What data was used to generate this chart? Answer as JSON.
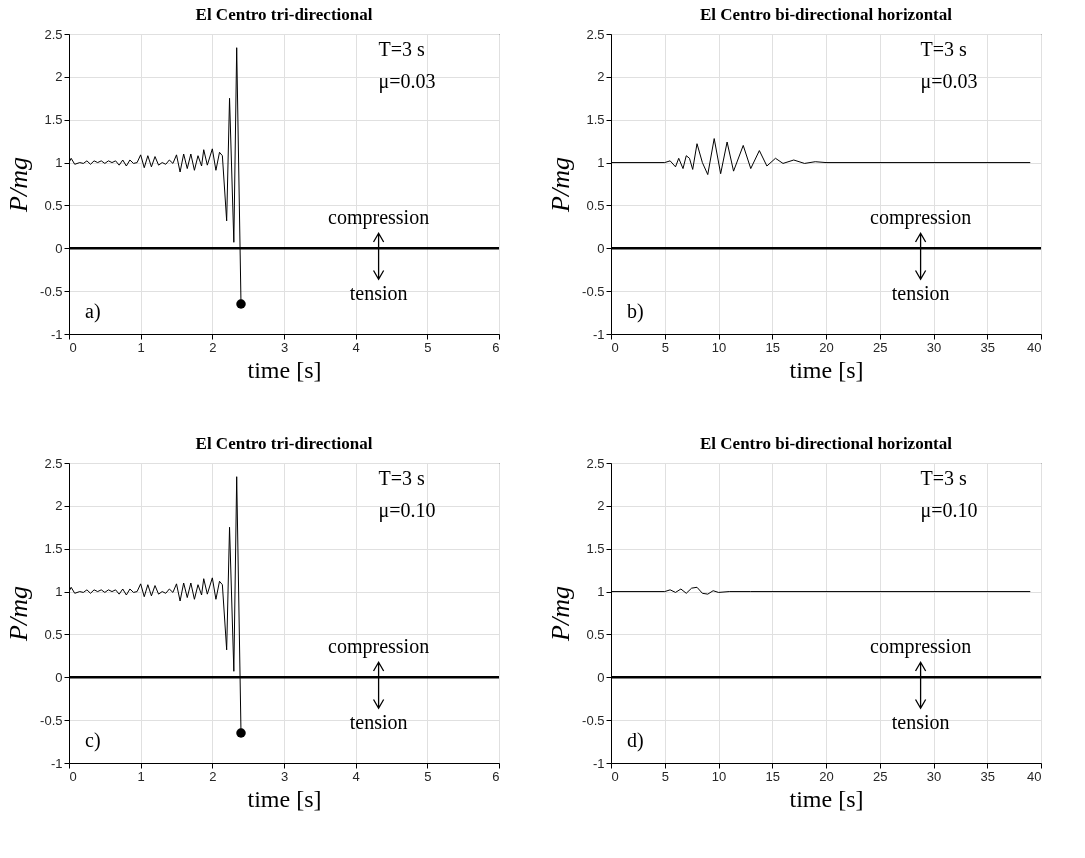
{
  "chart_data": [
    {
      "type": "line",
      "title": "El Centro tri-directional",
      "xlabel": "time [s]",
      "ylabel": "P/mg",
      "xlim": [
        0,
        6
      ],
      "xticks": [
        0,
        1,
        2,
        3,
        4,
        5,
        6
      ],
      "ylim": [
        -1,
        2.5
      ],
      "yticks": [
        -1,
        -0.5,
        0,
        0.5,
        1,
        1.5,
        2,
        2.5
      ],
      "grid": true,
      "series": [
        {
          "color": "#000000",
          "x": [
            0,
            0.03,
            0.08,
            0.15,
            0.2,
            0.25,
            0.3,
            0.35,
            0.4,
            0.45,
            0.5,
            0.55,
            0.6,
            0.65,
            0.7,
            0.75,
            0.8,
            0.85,
            0.9,
            0.95,
            1.0,
            1.05,
            1.1,
            1.15,
            1.2,
            1.25,
            1.3,
            1.35,
            1.4,
            1.45,
            1.5,
            1.55,
            1.6,
            1.65,
            1.7,
            1.75,
            1.8,
            1.85,
            1.88,
            1.93,
            2.0,
            2.05,
            2.1,
            2.14,
            2.2,
            2.24,
            2.3,
            2.34,
            2.4
          ],
          "values": [
            1.0,
            1.05,
            0.98,
            1.0,
            0.99,
            1.02,
            0.98,
            1.02,
            1.0,
            1.02,
            0.99,
            1.02,
            1.0,
            1.02,
            0.97,
            1.03,
            0.96,
            1.03,
            0.99,
            1.0,
            1.09,
            0.94,
            1.08,
            0.95,
            1.07,
            0.97,
            1.0,
            0.98,
            1.03,
            0.99,
            1.09,
            0.89,
            1.1,
            0.93,
            1.1,
            0.91,
            1.08,
            0.96,
            1.15,
            0.97,
            1.16,
            0.91,
            1.12,
            1.08,
            0.32,
            1.75,
            0.07,
            2.34,
            -0.65
          ]
        },
        {
          "type": "scatter",
          "color": "#000000",
          "marker": "circle",
          "x": [
            2.4
          ],
          "values": [
            -0.65
          ]
        }
      ],
      "ref_lines": [
        {
          "axis": "y",
          "value": 0,
          "color": "#000000"
        }
      ],
      "annotations": [
        "T=3 s",
        "μ=0.03",
        "a)",
        "compression",
        "tension"
      ]
    },
    {
      "type": "line",
      "title": "El Centro bi-directional horizontal",
      "xlabel": "time [s]",
      "ylabel": "P/mg",
      "xlim": [
        0,
        40
      ],
      "xticks": [
        0,
        5,
        10,
        15,
        20,
        25,
        30,
        35,
        40
      ],
      "ylim": [
        -1,
        2.5
      ],
      "yticks": [
        -1,
        -0.5,
        0,
        0.5,
        1,
        1.5,
        2,
        2.5
      ],
      "grid": true,
      "series": [
        {
          "color": "#000000",
          "x": [
            0,
            5,
            5.5,
            6,
            6.3,
            6.7,
            7,
            7.3,
            7.6,
            8.0,
            8.5,
            9.0,
            9.6,
            10.2,
            10.8,
            11.4,
            12.3,
            13.0,
            13.8,
            14.5,
            15.3,
            16.0,
            17.0,
            18.0,
            19,
            20,
            39
          ],
          "values": [
            1.0,
            1.0,
            1.02,
            0.95,
            1.05,
            0.93,
            1.08,
            1.05,
            0.92,
            1.22,
            1.0,
            0.86,
            1.28,
            0.87,
            1.24,
            0.9,
            1.2,
            0.93,
            1.14,
            0.96,
            1.05,
            0.99,
            1.03,
            0.99,
            1.01,
            1.0,
            1.0
          ]
        }
      ],
      "ref_lines": [
        {
          "axis": "y",
          "value": 0,
          "color": "#000000"
        }
      ],
      "annotations": [
        "T=3 s",
        "μ=0.03",
        "b)",
        "compression",
        "tension"
      ]
    },
    {
      "type": "line",
      "title": "El Centro tri-directional",
      "xlabel": "time [s]",
      "ylabel": "P/mg",
      "xlim": [
        0,
        6
      ],
      "xticks": [
        0,
        1,
        2,
        3,
        4,
        5,
        6
      ],
      "ylim": [
        -1,
        2.5
      ],
      "yticks": [
        -1,
        -0.5,
        0,
        0.5,
        1,
        1.5,
        2,
        2.5
      ],
      "grid": true,
      "series": [
        {
          "color": "#000000",
          "x": [
            0,
            0.03,
            0.08,
            0.15,
            0.2,
            0.25,
            0.3,
            0.35,
            0.4,
            0.45,
            0.5,
            0.55,
            0.6,
            0.65,
            0.7,
            0.75,
            0.8,
            0.85,
            0.9,
            0.95,
            1.0,
            1.05,
            1.1,
            1.15,
            1.2,
            1.25,
            1.3,
            1.35,
            1.4,
            1.45,
            1.5,
            1.55,
            1.6,
            1.65,
            1.7,
            1.75,
            1.8,
            1.85,
            1.88,
            1.93,
            2.0,
            2.05,
            2.1,
            2.14,
            2.2,
            2.24,
            2.3,
            2.34,
            2.4
          ],
          "values": [
            1.0,
            1.05,
            0.98,
            1.0,
            0.99,
            1.02,
            0.98,
            1.02,
            1.0,
            1.02,
            0.99,
            1.02,
            1.0,
            1.02,
            0.97,
            1.03,
            0.96,
            1.03,
            0.99,
            1.0,
            1.09,
            0.94,
            1.08,
            0.95,
            1.07,
            0.97,
            1.0,
            0.98,
            1.03,
            0.99,
            1.09,
            0.89,
            1.1,
            0.93,
            1.1,
            0.91,
            1.08,
            0.96,
            1.15,
            0.97,
            1.16,
            0.91,
            1.12,
            1.08,
            0.32,
            1.75,
            0.07,
            2.34,
            -0.65
          ]
        },
        {
          "type": "scatter",
          "color": "#000000",
          "marker": "circle",
          "x": [
            2.4
          ],
          "values": [
            -0.65
          ]
        }
      ],
      "ref_lines": [
        {
          "axis": "y",
          "value": 0,
          "color": "#000000"
        }
      ],
      "annotations": [
        "T=3 s",
        "μ=0.10",
        "c)",
        "compression",
        "tension"
      ]
    },
    {
      "type": "line",
      "title": "El Centro bi-directional horizontal",
      "xlabel": "time [s]",
      "ylabel": "P/mg",
      "xlim": [
        0,
        40
      ],
      "xticks": [
        0,
        5,
        10,
        15,
        20,
        25,
        30,
        35,
        40
      ],
      "ylim": [
        -1,
        2.5
      ],
      "yticks": [
        -1,
        -0.5,
        0,
        0.5,
        1,
        1.5,
        2,
        2.5
      ],
      "grid": true,
      "series": [
        {
          "color": "#000000",
          "x": [
            0,
            5,
            5.5,
            6,
            6.5,
            7,
            7.5,
            8,
            8.5,
            9,
            9.5,
            10,
            11,
            13,
            39
          ],
          "values": [
            1.0,
            1.0,
            1.02,
            0.99,
            1.03,
            0.98,
            1.04,
            1.05,
            0.98,
            0.97,
            1.01,
            0.99,
            1.0,
            1.0,
            1.0
          ]
        }
      ],
      "ref_lines": [
        {
          "axis": "y",
          "value": 0,
          "color": "#000000"
        }
      ],
      "annotations": [
        "T=3 s",
        "μ=0.10",
        "d)",
        "compression",
        "tension"
      ]
    }
  ]
}
